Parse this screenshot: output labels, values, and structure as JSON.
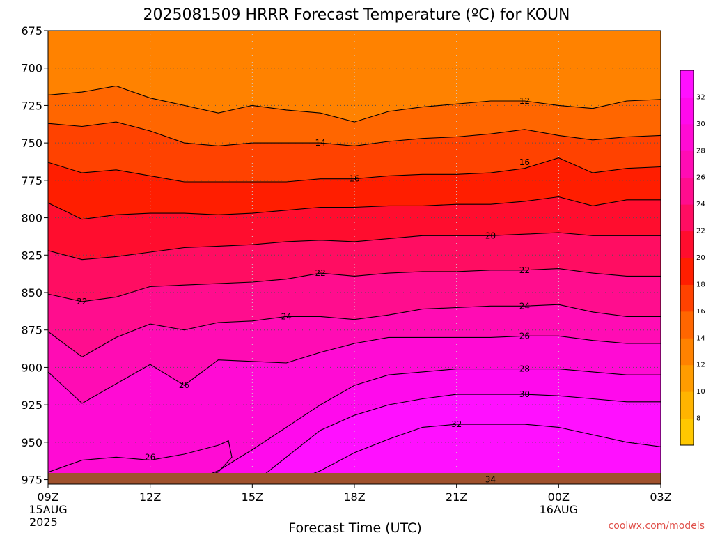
{
  "chart_data": {
    "type": "heatmap",
    "title": "2025081509 HRRR Forecast Temperature (ºC) for KOUN",
    "xlabel": "Forecast Time (UTC)",
    "ylabel": "",
    "x_ticks": [
      {
        "hour": 0,
        "label": "09Z",
        "sub1": "15AUG",
        "sub2": "2025"
      },
      {
        "hour": 3,
        "label": "12Z",
        "sub1": "",
        "sub2": ""
      },
      {
        "hour": 6,
        "label": "15Z",
        "sub1": "",
        "sub2": ""
      },
      {
        "hour": 9,
        "label": "18Z",
        "sub1": "",
        "sub2": ""
      },
      {
        "hour": 12,
        "label": "21Z",
        "sub1": "",
        "sub2": ""
      },
      {
        "hour": 15,
        "label": "00Z",
        "sub1": "16AUG",
        "sub2": ""
      },
      {
        "hour": 18,
        "label": "03Z",
        "sub1": "",
        "sub2": ""
      }
    ],
    "y_ticks": [
      "675",
      "700",
      "725",
      "750",
      "775",
      "800",
      "825",
      "850",
      "875",
      "900",
      "925",
      "950",
      "975"
    ],
    "y_range_hPa": [
      675,
      978
    ],
    "x_range_hours": [
      0,
      18
    ],
    "grid": true,
    "colorbar": {
      "labels": [
        "8",
        "10",
        "12",
        "14",
        "16",
        "18",
        "20",
        "22",
        "24",
        "26",
        "28",
        "30",
        "32"
      ],
      "colors": [
        "#ffc800",
        "#ffb400",
        "#ff9c00",
        "#ff8200",
        "#ff6600",
        "#ff4200",
        "#ff1e00",
        "#ff0d2e",
        "#ff0d62",
        "#ff0d8e",
        "#ff0cb4",
        "#ff0bd4",
        "#ff0aec",
        "#ff10ff"
      ]
    },
    "contours": [
      {
        "label": "12",
        "level": 12,
        "points": [
          [
            0,
            718
          ],
          [
            1,
            716
          ],
          [
            2,
            712
          ],
          [
            3,
            720
          ],
          [
            4,
            725
          ],
          [
            5,
            730
          ],
          [
            6,
            725
          ],
          [
            7,
            728
          ],
          [
            8,
            730
          ],
          [
            9,
            736
          ],
          [
            10,
            729
          ],
          [
            11,
            726
          ],
          [
            12,
            724
          ],
          [
            13,
            722
          ],
          [
            14,
            722
          ],
          [
            15,
            725
          ],
          [
            16,
            727
          ],
          [
            17,
            722
          ],
          [
            18,
            721
          ]
        ]
      },
      {
        "label": "14",
        "level": 14,
        "points": [
          [
            0,
            737
          ],
          [
            1,
            739
          ],
          [
            2,
            736
          ],
          [
            3,
            742
          ],
          [
            4,
            750
          ],
          [
            5,
            752
          ],
          [
            6,
            750
          ],
          [
            7,
            750
          ],
          [
            8,
            750
          ],
          [
            9,
            752
          ],
          [
            10,
            749
          ],
          [
            11,
            747
          ],
          [
            12,
            746
          ],
          [
            13,
            744
          ],
          [
            14,
            741
          ],
          [
            15,
            745
          ],
          [
            16,
            748
          ],
          [
            17,
            746
          ],
          [
            18,
            745
          ]
        ]
      },
      {
        "label": "16",
        "level": 16,
        "points": [
          [
            0,
            763
          ],
          [
            1,
            770
          ],
          [
            2,
            768
          ],
          [
            3,
            772
          ],
          [
            4,
            776
          ],
          [
            5,
            776
          ],
          [
            6,
            776
          ],
          [
            7,
            776
          ],
          [
            8,
            774
          ],
          [
            9,
            774
          ],
          [
            10,
            772
          ],
          [
            11,
            771
          ],
          [
            12,
            771
          ],
          [
            13,
            770
          ],
          [
            14,
            767
          ],
          [
            15,
            760
          ],
          [
            16,
            770
          ],
          [
            17,
            767
          ],
          [
            18,
            766
          ]
        ]
      },
      {
        "label": "18",
        "level": 18,
        "points": [
          [
            0,
            790
          ],
          [
            1,
            801
          ],
          [
            2,
            798
          ],
          [
            3,
            797
          ],
          [
            4,
            797
          ],
          [
            5,
            798
          ],
          [
            6,
            797
          ],
          [
            7,
            795
          ],
          [
            8,
            793
          ],
          [
            9,
            793
          ],
          [
            10,
            792
          ],
          [
            11,
            792
          ],
          [
            12,
            791
          ],
          [
            13,
            791
          ],
          [
            14,
            789
          ],
          [
            15,
            786
          ],
          [
            16,
            792
          ],
          [
            17,
            788
          ],
          [
            18,
            788
          ]
        ]
      },
      {
        "label": "20",
        "level": 20,
        "points": [
          [
            0,
            822
          ],
          [
            1,
            828
          ],
          [
            2,
            826
          ],
          [
            3,
            823
          ],
          [
            4,
            820
          ],
          [
            5,
            819
          ],
          [
            6,
            818
          ],
          [
            7,
            816
          ],
          [
            8,
            815
          ],
          [
            9,
            816
          ],
          [
            10,
            814
          ],
          [
            11,
            812
          ],
          [
            12,
            812
          ],
          [
            13,
            812
          ],
          [
            14,
            811
          ],
          [
            15,
            810
          ],
          [
            16,
            812
          ],
          [
            17,
            812
          ],
          [
            18,
            812
          ]
        ]
      },
      {
        "label": "22",
        "level": 22,
        "points": [
          [
            0,
            851
          ],
          [
            1,
            856
          ],
          [
            2,
            853
          ],
          [
            3,
            846
          ],
          [
            4,
            845
          ],
          [
            5,
            844
          ],
          [
            6,
            843
          ],
          [
            7,
            841
          ],
          [
            8,
            837
          ],
          [
            9,
            839
          ],
          [
            10,
            837
          ],
          [
            11,
            836
          ],
          [
            12,
            836
          ],
          [
            13,
            835
          ],
          [
            14,
            835
          ],
          [
            15,
            834
          ],
          [
            16,
            837
          ],
          [
            17,
            839
          ],
          [
            18,
            839
          ]
        ]
      },
      {
        "label": "24",
        "level": 24,
        "points": [
          [
            0,
            876
          ],
          [
            1,
            893
          ],
          [
            2,
            880
          ],
          [
            3,
            871
          ],
          [
            4,
            875
          ],
          [
            5,
            870
          ],
          [
            6,
            869
          ],
          [
            7,
            866
          ],
          [
            8,
            866
          ],
          [
            9,
            868
          ],
          [
            10,
            865
          ],
          [
            11,
            861
          ],
          [
            12,
            860
          ],
          [
            13,
            859
          ],
          [
            14,
            859
          ],
          [
            15,
            858
          ],
          [
            16,
            863
          ],
          [
            17,
            866
          ],
          [
            18,
            866
          ]
        ]
      },
      {
        "label": "26",
        "level": 26,
        "points": [
          [
            0,
            903
          ],
          [
            1,
            924
          ],
          [
            2,
            911
          ],
          [
            3,
            898
          ],
          [
            4,
            912
          ],
          [
            5,
            895
          ],
          [
            6,
            896
          ],
          [
            7,
            897
          ],
          [
            8,
            890
          ],
          [
            9,
            884
          ],
          [
            10,
            880
          ],
          [
            11,
            880
          ],
          [
            12,
            880
          ],
          [
            13,
            880
          ],
          [
            14,
            879
          ],
          [
            15,
            879
          ],
          [
            16,
            882
          ],
          [
            17,
            884
          ],
          [
            18,
            884
          ]
        ]
      },
      {
        "label": "28",
        "level": 28,
        "points": [
          [
            4,
            978
          ],
          [
            5,
            969
          ],
          [
            6,
            955
          ],
          [
            7,
            940
          ],
          [
            8,
            925
          ],
          [
            9,
            912
          ],
          [
            10,
            905
          ],
          [
            11,
            903
          ],
          [
            12,
            901
          ],
          [
            13,
            901
          ],
          [
            14,
            901
          ],
          [
            15,
            901
          ],
          [
            16,
            903
          ],
          [
            17,
            905
          ],
          [
            18,
            905
          ]
        ]
      },
      {
        "label": "30",
        "level": 30,
        "points": [
          [
            6,
            978
          ],
          [
            7,
            960
          ],
          [
            8,
            942
          ],
          [
            9,
            932
          ],
          [
            10,
            925
          ],
          [
            11,
            921
          ],
          [
            12,
            918
          ],
          [
            13,
            918
          ],
          [
            14,
            918
          ],
          [
            15,
            919
          ],
          [
            16,
            921
          ],
          [
            17,
            923
          ],
          [
            18,
            923
          ]
        ]
      },
      {
        "label": "32",
        "level": 32,
        "points": [
          [
            7,
            978
          ],
          [
            8,
            969
          ],
          [
            9,
            957
          ],
          [
            10,
            948
          ],
          [
            11,
            940
          ],
          [
            12,
            938
          ],
          [
            13,
            938
          ],
          [
            14,
            938
          ],
          [
            15,
            940
          ],
          [
            16,
            945
          ],
          [
            17,
            950
          ],
          [
            18,
            953
          ]
        ]
      },
      {
        "label": "34",
        "level": 34,
        "points": [
          [
            11,
            978
          ],
          [
            13,
            975
          ],
          [
            15,
            975
          ],
          [
            17,
            977
          ]
        ]
      }
    ],
    "pockets": [
      {
        "label": "26",
        "points": [
          [
            0,
            970
          ],
          [
            1,
            962
          ],
          [
            2,
            960
          ],
          [
            3,
            962
          ],
          [
            4,
            958
          ],
          [
            5,
            952
          ],
          [
            5.3,
            949
          ],
          [
            5.4,
            960
          ],
          [
            5,
            970
          ],
          [
            4,
            977
          ],
          [
            2,
            977
          ],
          [
            0,
            975
          ]
        ]
      }
    ],
    "contour_labels": [
      {
        "text": "12",
        "hour": 14,
        "p": 722
      },
      {
        "text": "14",
        "hour": 8,
        "p": 750
      },
      {
        "text": "16",
        "hour": 9,
        "p": 774
      },
      {
        "text": "16",
        "hour": 14,
        "p": 763
      },
      {
        "text": "20",
        "hour": 13,
        "p": 812
      },
      {
        "text": "22",
        "hour": 1,
        "p": 856
      },
      {
        "text": "22",
        "hour": 8,
        "p": 837
      },
      {
        "text": "22",
        "hour": 14,
        "p": 835
      },
      {
        "text": "24",
        "hour": 7,
        "p": 866
      },
      {
        "text": "24",
        "hour": 14,
        "p": 859
      },
      {
        "text": "26",
        "hour": 4,
        "p": 912
      },
      {
        "text": "26",
        "hour": 14,
        "p": 879
      },
      {
        "text": "28",
        "hour": 14,
        "p": 901
      },
      {
        "text": "30",
        "hour": 14,
        "p": 918
      },
      {
        "text": "32",
        "hour": 12,
        "p": 938
      },
      {
        "text": "34",
        "hour": 13,
        "p": 975
      },
      {
        "text": "26",
        "hour": 3,
        "p": 960
      }
    ],
    "ground_color": "#a0522d"
  },
  "credit": "coolwx.com/models",
  "colors": {
    "credit": "#e0504a",
    "contour": "#000000",
    "grid": "#555555"
  }
}
